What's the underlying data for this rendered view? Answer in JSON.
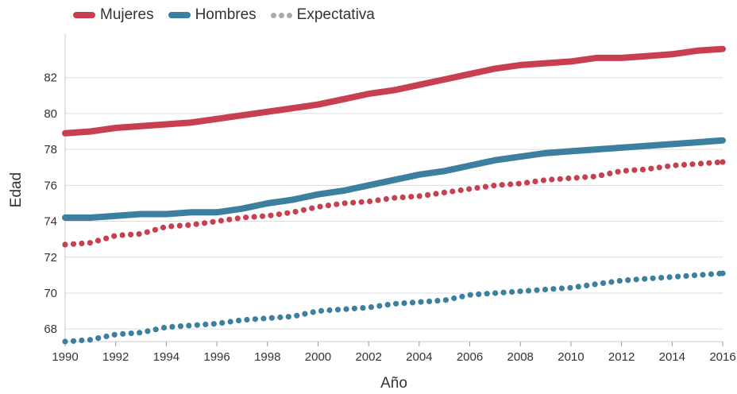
{
  "chart_data": {
    "type": "line",
    "xlabel": "Año",
    "ylabel": "Edad",
    "xlim": [
      1990,
      2016
    ],
    "ylim": [
      67.3,
      84.2
    ],
    "xticks": [
      1990,
      1992,
      1994,
      1996,
      1998,
      2000,
      2002,
      2004,
      2006,
      2008,
      2010,
      2012,
      2014,
      2016
    ],
    "yticks": [
      68,
      70,
      72,
      74,
      76,
      78,
      80,
      82
    ],
    "grid": "horizontal",
    "legend_position": "top-left",
    "legend": [
      "Mujeres",
      "Hombres",
      "Expectativa"
    ],
    "x": [
      1990,
      1991,
      1992,
      1993,
      1994,
      1995,
      1996,
      1997,
      1998,
      1999,
      2000,
      2001,
      2002,
      2003,
      2004,
      2005,
      2006,
      2007,
      2008,
      2009,
      2010,
      2011,
      2012,
      2013,
      2014,
      2015,
      2016
    ],
    "series": [
      {
        "name": "Mujeres",
        "style": "solid",
        "color": "#c8404f",
        "values": [
          78.9,
          79.0,
          79.2,
          79.3,
          79.4,
          79.5,
          79.7,
          79.9,
          80.1,
          80.3,
          80.5,
          80.8,
          81.1,
          81.3,
          81.6,
          81.9,
          82.2,
          82.5,
          82.7,
          82.8,
          82.9,
          83.1,
          83.1,
          83.2,
          83.3,
          83.5,
          83.6
        ]
      },
      {
        "name": "Hombres",
        "style": "solid",
        "color": "#3d7f9e",
        "values": [
          74.2,
          74.2,
          74.3,
          74.4,
          74.4,
          74.5,
          74.5,
          74.7,
          75.0,
          75.2,
          75.5,
          75.7,
          76.0,
          76.3,
          76.6,
          76.8,
          77.1,
          77.4,
          77.6,
          77.8,
          77.9,
          78.0,
          78.1,
          78.2,
          78.3,
          78.4,
          78.5
        ]
      },
      {
        "name": "Expectativa",
        "style": "dotted",
        "color": "#c8404f",
        "values": [
          72.7,
          72.8,
          73.2,
          73.3,
          73.7,
          73.8,
          74.0,
          74.2,
          74.3,
          74.5,
          74.8,
          75.0,
          75.1,
          75.3,
          75.4,
          75.6,
          75.8,
          76.0,
          76.1,
          76.3,
          76.4,
          76.5,
          76.8,
          76.9,
          77.1,
          77.2,
          77.3
        ]
      },
      {
        "style": "dotted",
        "color": "#3d7f9e",
        "values": [
          67.3,
          67.4,
          67.7,
          67.8,
          68.1,
          68.2,
          68.3,
          68.5,
          68.6,
          68.7,
          69.0,
          69.1,
          69.2,
          69.4,
          69.5,
          69.6,
          69.9,
          70.0,
          70.1,
          70.2,
          70.3,
          70.5,
          70.7,
          70.8,
          70.9,
          71.0,
          71.1
        ]
      }
    ]
  },
  "legend_colors": {
    "expectativa_gray": "#a9a9a9"
  }
}
